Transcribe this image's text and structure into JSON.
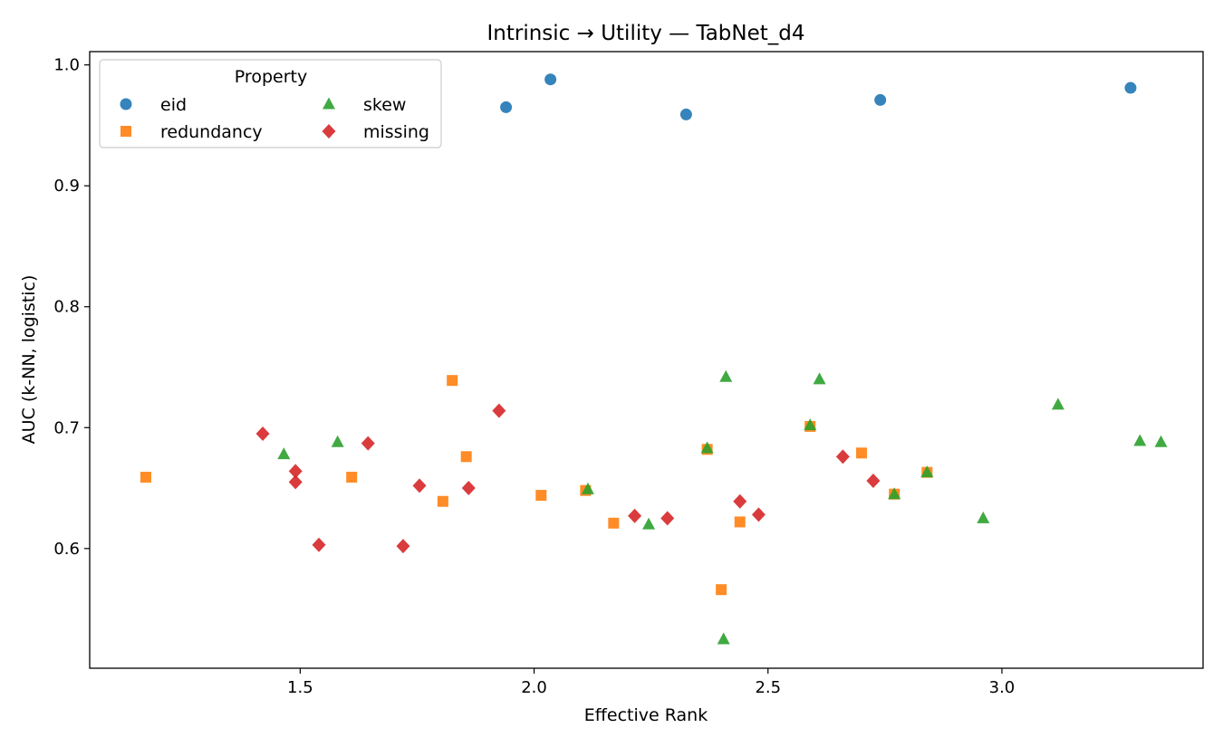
{
  "chart_data": {
    "type": "scatter",
    "title": "Intrinsic → Utility — TabNet_d4",
    "xlabel": "Effective Rank",
    "ylabel": "AUC (k-NN, logistic)",
    "xlim": [
      1.05,
      3.43
    ],
    "ylim": [
      0.501,
      1.011
    ],
    "xticks": [
      1.5,
      2.0,
      2.5,
      3.0
    ],
    "xtick_labels": [
      "1.5",
      "2.0",
      "2.5",
      "3.0"
    ],
    "yticks": [
      0.6,
      0.7,
      0.8,
      0.9,
      1.0
    ],
    "ytick_labels": [
      "0.6",
      "0.7",
      "0.8",
      "0.9",
      "1.0"
    ],
    "grid": false,
    "legend": {
      "title": "Property",
      "placement": "upper-left",
      "columns": 2
    },
    "series": [
      {
        "name": "eid",
        "marker": "circle",
        "color": "#1f77b4",
        "points": [
          [
            1.94,
            0.965
          ],
          [
            2.035,
            0.988
          ],
          [
            2.325,
            0.959
          ],
          [
            2.74,
            0.971
          ],
          [
            3.275,
            0.981
          ]
        ]
      },
      {
        "name": "redundancy",
        "marker": "square",
        "color": "#ff7f0e",
        "points": [
          [
            1.17,
            0.659
          ],
          [
            1.61,
            0.659
          ],
          [
            1.805,
            0.639
          ],
          [
            1.825,
            0.739
          ],
          [
            1.855,
            0.676
          ],
          [
            2.015,
            0.644
          ],
          [
            2.11,
            0.648
          ],
          [
            2.17,
            0.621
          ],
          [
            2.37,
            0.682
          ],
          [
            2.4,
            0.566
          ],
          [
            2.44,
            0.622
          ],
          [
            2.59,
            0.701
          ],
          [
            2.7,
            0.679
          ],
          [
            2.77,
            0.645
          ],
          [
            2.84,
            0.663
          ]
        ]
      },
      {
        "name": "skew",
        "marker": "triangle",
        "color": "#2ca02c",
        "points": [
          [
            1.465,
            0.678
          ],
          [
            1.58,
            0.688
          ],
          [
            2.115,
            0.649
          ],
          [
            2.245,
            0.62
          ],
          [
            2.37,
            0.683
          ],
          [
            2.405,
            0.525
          ],
          [
            2.41,
            0.742
          ],
          [
            2.59,
            0.702
          ],
          [
            2.61,
            0.74
          ],
          [
            2.77,
            0.645
          ],
          [
            2.84,
            0.663
          ],
          [
            2.96,
            0.625
          ],
          [
            3.12,
            0.719
          ],
          [
            3.295,
            0.689
          ],
          [
            3.34,
            0.688
          ]
        ]
      },
      {
        "name": "missing",
        "marker": "diamond",
        "color": "#d62728",
        "points": [
          [
            1.42,
            0.695
          ],
          [
            1.49,
            0.664
          ],
          [
            1.49,
            0.655
          ],
          [
            1.54,
            0.603
          ],
          [
            1.645,
            0.687
          ],
          [
            1.72,
            0.602
          ],
          [
            1.755,
            0.652
          ],
          [
            1.86,
            0.65
          ],
          [
            1.925,
            0.714
          ],
          [
            2.215,
            0.627
          ],
          [
            2.285,
            0.625
          ],
          [
            2.44,
            0.639
          ],
          [
            2.48,
            0.628
          ],
          [
            2.66,
            0.676
          ],
          [
            2.725,
            0.656
          ]
        ]
      }
    ]
  }
}
